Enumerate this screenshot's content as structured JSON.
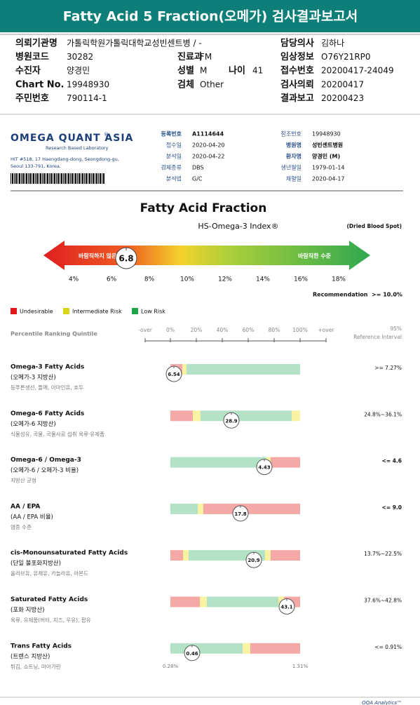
{
  "header": {
    "title": "Fatty Acid 5 Fraction(오메가) 검사결과보고서"
  },
  "info": {
    "rows": [
      [
        [
          "의뢰기관명",
          "가톨릭학원가톨릭대학교성빈센트병 / -"
        ],
        [
          "담당의사",
          "김하나"
        ]
      ],
      [
        [
          "병원코드",
          "30282"
        ],
        [
          "진료과",
          "FM"
        ],
        [
          "임상정보",
          "O76Y21RP0"
        ]
      ],
      [
        [
          "수진자",
          "양경민"
        ],
        [
          "성별",
          "M"
        ],
        [
          "나이",
          "41"
        ],
        [
          "접수번호",
          "20200417-24049"
        ]
      ],
      [
        [
          "Chart No.",
          "19948930"
        ],
        [
          "검체",
          "Other"
        ],
        [
          "검사의뢰",
          "20200417"
        ]
      ],
      [
        [
          "주민번호",
          "790114-1"
        ],
        [
          "결과보고",
          "20200423"
        ]
      ]
    ]
  },
  "lab": {
    "logo": "OMEGA QUANT ASIA",
    "logo_mark": "®",
    "subtitle": "Research Based Laboratory",
    "address": [
      "HIT #518, 17 Haengdang-dong, Seongdong-gu,",
      "Seoul 133-791, Korea."
    ],
    "fields_left": [
      [
        "등록번호",
        "A1114644"
      ],
      [
        "접수일",
        "2020-04-20"
      ],
      [
        "분석일",
        "2020-04-22"
      ],
      [
        "검체종류",
        "DBS"
      ],
      [
        "분석법",
        "G/C"
      ]
    ],
    "fields_right": [
      [
        "참조번호",
        "19948930"
      ],
      [
        "병원명",
        "성빈센트병원"
      ],
      [
        "환자명",
        "양경민 (M)"
      ],
      [
        "생년월일",
        "1979-01-14"
      ],
      [
        "채혈일",
        "2020-04-17"
      ]
    ]
  },
  "index": {
    "title": "Fatty Acid Fraction",
    "name": "HS-Omega-3 Index®",
    "specimen": "(Dried Blood Spot)",
    "low_label": "바람직하지 않은 수준",
    "high_label": "바람직한 수준",
    "value": 6.8,
    "ticks": [
      "4%",
      "6%",
      "8%",
      "10%",
      "12%",
      "14%",
      "16%",
      "18%"
    ],
    "recommendation_label": "Recommendation",
    "recommendation": ">= 10.0%"
  },
  "legend": [
    "Undesirable",
    "Intermediate Risk",
    "Low Risk"
  ],
  "ranking": {
    "title": "Percentile Ranking Quintile",
    "ticks": [
      "-over",
      "0%",
      "20%",
      "40%",
      "60%",
      "80%",
      "100%",
      "+over"
    ],
    "reference_title": [
      "95%",
      "Reference Interval"
    ]
  },
  "rows": [
    {
      "name": "Omega-3 Fatty Acids",
      "korean": "(오메가-3 지방산)",
      "sources": "등푸른생선, 들깨, 아마인유, 호두",
      "result": 6.54,
      "reference": ">= 7.27%"
    },
    {
      "name": "Omega-6 Fatty Acids",
      "korean": "(오메가-6 지방산)",
      "sources": "식물성유, 곡물, 곡물사료 섭취 육류·유제품",
      "result": 28.9,
      "reference": "24.8%~36.1%"
    },
    {
      "name": "Omega-6 / Omega-3",
      "korean": "(오메가-6 / 오메가-3 비율)",
      "sources": "지방산 균형",
      "result": 4.43,
      "reference": "<= 4.6"
    },
    {
      "name": "AA / EPA",
      "korean": "(AA / EPA 비율)",
      "sources": "염증 수준",
      "result": 17.8,
      "reference": "<= 9.0"
    },
    {
      "name": "cis-Monounsaturated Fatty Acids",
      "korean": "(단일 불포화지방산)",
      "sources": "올리브유, 유채유, 카놀라유, 아몬드",
      "result": 20.9,
      "reference": "13.7%~22.5%"
    },
    {
      "name": "Saturated Fatty Acids",
      "korean": "(포화 지방산)",
      "sources": "육류, 유제품(버터, 치즈, 우유), 팜유",
      "result": 43.1,
      "reference": "37.6%~42.8%"
    },
    {
      "name": "Trans Fatty Acids",
      "korean": "(트랜스 지방산)",
      "sources": "튀김, 쇼트닝, 마아가린",
      "result": 0.46,
      "reference": "<= 0.91%",
      "scale_min": "0.28%",
      "scale_max": "1.31%"
    }
  ],
  "footer": "OQA Analytics™"
}
